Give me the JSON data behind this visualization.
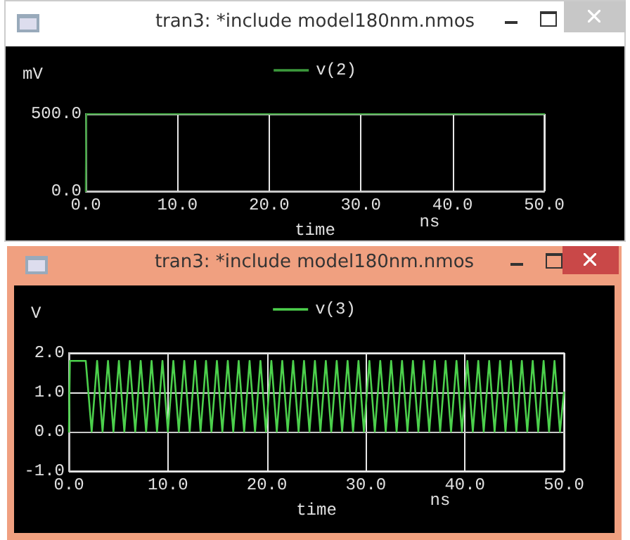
{
  "chart_data": [
    {
      "type": "line",
      "title": "tran3: *include model180nm.nmos",
      "ylabel": "mV",
      "xlabel": "time",
      "annotations": [
        "ns"
      ],
      "legend": "top",
      "grid": true,
      "marker": "none",
      "line_style": "solid",
      "xlim": [
        0,
        50
      ],
      "xticks": [
        {
          "value": 0,
          "label": "0.0"
        },
        {
          "value": 10,
          "label": "10.0"
        },
        {
          "value": 20,
          "label": "20.0"
        },
        {
          "value": 30,
          "label": "30.0"
        },
        {
          "value": 40,
          "label": "40.0"
        },
        {
          "value": 50,
          "label": "50.0"
        }
      ],
      "ylim": [
        0,
        500
      ],
      "yticks": [
        {
          "value": 0,
          "label": "0.0"
        },
        {
          "value": 500,
          "label": "500.0"
        }
      ],
      "series": [
        {
          "name": "v(2)",
          "color": "#3c9a3c",
          "x": [
            0,
            0.05,
            50
          ],
          "values": [
            0,
            500,
            500
          ]
        }
      ]
    },
    {
      "type": "line",
      "title": "tran3: *include model180nm.nmos",
      "ylabel": "V",
      "xlabel": "time",
      "annotations": [
        "ns"
      ],
      "legend": "top",
      "grid": true,
      "marker": "none",
      "line_style": "solid",
      "xlim": [
        0,
        50
      ],
      "xticks": [
        {
          "value": 0,
          "label": "0.0"
        },
        {
          "value": 10,
          "label": "10.0"
        },
        {
          "value": 20,
          "label": "20.0"
        },
        {
          "value": 30,
          "label": "30.0"
        },
        {
          "value": 40,
          "label": "40.0"
        },
        {
          "value": 50,
          "label": "50.0"
        }
      ],
      "ylim": [
        -1,
        2
      ],
      "yticks": [
        {
          "value": -1,
          "label": "-1.0"
        },
        {
          "value": 0,
          "label": "0.0"
        },
        {
          "value": 1,
          "label": "1.0"
        },
        {
          "value": 2,
          "label": "2.0"
        }
      ],
      "series": [
        {
          "name": "v(3)",
          "color": "#4cd04c",
          "x": [
            0,
            0.1,
            1.7,
            2.3,
            2.85,
            3.4,
            3.95,
            4.5,
            5.05,
            5.6,
            6.15,
            6.7,
            7.25,
            7.8,
            8.35,
            8.9,
            9.45,
            10.0,
            10.55,
            11.1,
            11.65,
            12.2,
            12.75,
            13.3,
            13.85,
            14.4,
            14.95,
            15.5,
            16.05,
            16.6,
            17.15,
            17.7,
            18.25,
            18.8,
            19.35,
            19.9,
            20.45,
            21.0,
            21.55,
            22.1,
            22.65,
            23.2,
            23.75,
            24.3,
            24.85,
            25.4,
            25.95,
            26.5,
            27.05,
            27.6,
            28.15,
            28.7,
            29.25,
            29.8,
            30.35,
            30.9,
            31.45,
            32.0,
            32.55,
            33.1,
            33.65,
            34.2,
            34.75,
            35.3,
            35.85,
            36.4,
            36.95,
            37.5,
            38.05,
            38.6,
            39.15,
            39.7,
            40.25,
            40.8,
            41.35,
            41.9,
            42.45,
            43.0,
            43.55,
            44.1,
            44.65,
            45.2,
            45.75,
            46.3,
            46.85,
            47.4,
            47.95,
            48.5,
            49.05,
            49.6,
            50
          ],
          "values": [
            0,
            1.8,
            1.8,
            0,
            1.8,
            0,
            1.8,
            0,
            1.8,
            0,
            1.8,
            0,
            1.8,
            0,
            1.8,
            0,
            1.8,
            0,
            1.8,
            0,
            1.8,
            0,
            1.8,
            0,
            1.8,
            0,
            1.8,
            0,
            1.8,
            0,
            1.8,
            0,
            1.8,
            0,
            1.8,
            0,
            1.8,
            0,
            1.8,
            0,
            1.8,
            0,
            1.8,
            0,
            1.8,
            0,
            1.8,
            0,
            1.8,
            0,
            1.8,
            0,
            1.8,
            0,
            1.8,
            0,
            1.8,
            0,
            1.8,
            0,
            1.8,
            0,
            1.8,
            0,
            1.8,
            0,
            1.8,
            0,
            1.8,
            0,
            1.8,
            0,
            1.8,
            0,
            1.8,
            0,
            1.8,
            0,
            1.8,
            0,
            1.8,
            0,
            1.8,
            0,
            1.8,
            0,
            1.8,
            0,
            1.8,
            0,
            1.0
          ]
        }
      ]
    }
  ]
}
